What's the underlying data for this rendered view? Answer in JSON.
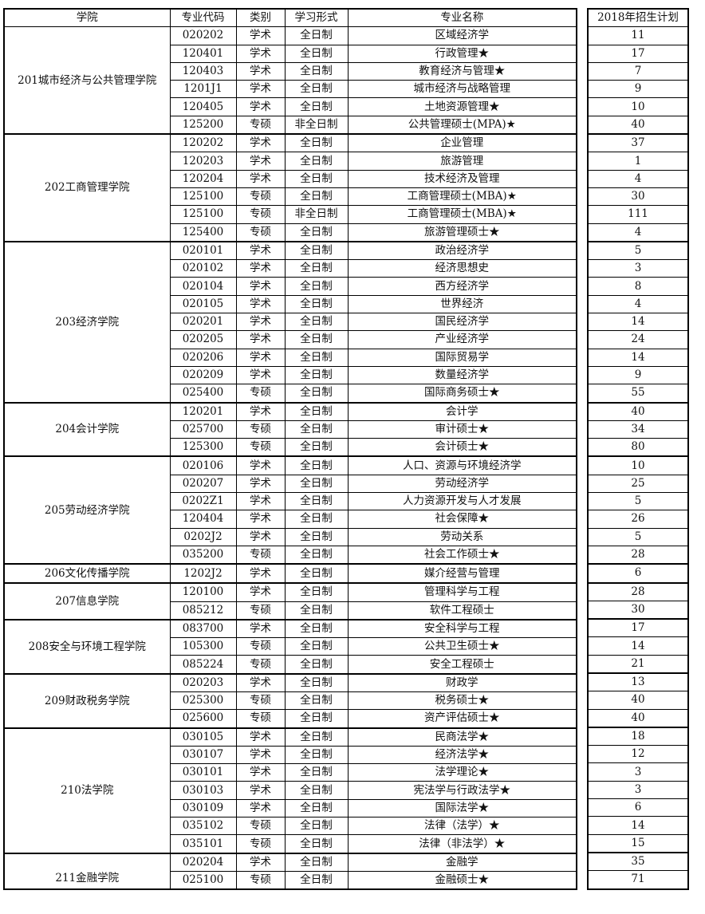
{
  "headers": {
    "college": "学院",
    "code": "专业代码",
    "type": "类别",
    "mode": "学习形式",
    "name": "专业名称",
    "plan": "2018年招生计划"
  },
  "groups": [
    {
      "college": "201城市经济与公共管理学院",
      "rows": [
        {
          "code": "020202",
          "type": "学术",
          "mode": "全日制",
          "name": "区域经济学",
          "plan": "11"
        },
        {
          "code": "120401",
          "type": "学术",
          "mode": "全日制",
          "name": "行政管理★",
          "plan": "17"
        },
        {
          "code": "120403",
          "type": "学术",
          "mode": "全日制",
          "name": "教育经济与管理★",
          "plan": "7"
        },
        {
          "code": "1201J1",
          "type": "学术",
          "mode": "全日制",
          "name": "城市经济与战略管理",
          "plan": "9"
        },
        {
          "code": "120405",
          "type": "学术",
          "mode": "全日制",
          "name": "土地资源管理★",
          "plan": "10"
        },
        {
          "code": "125200",
          "type": "专硕",
          "mode": "非全日制",
          "name": "公共管理硕士(MPA)★",
          "plan": "40"
        }
      ]
    },
    {
      "college": "202工商管理学院",
      "rows": [
        {
          "code": "120202",
          "type": "学术",
          "mode": "全日制",
          "name": "企业管理",
          "plan": "37"
        },
        {
          "code": "120203",
          "type": "学术",
          "mode": "全日制",
          "name": "旅游管理",
          "plan": "1"
        },
        {
          "code": "120204",
          "type": "学术",
          "mode": "全日制",
          "name": "技术经济及管理",
          "plan": "4"
        },
        {
          "code": "125100",
          "type": "专硕",
          "mode": "全日制",
          "name": "工商管理硕士(MBA)★",
          "plan": "30"
        },
        {
          "code": "125100",
          "type": "专硕",
          "mode": "非全日制",
          "name": "工商管理硕士(MBA)★",
          "plan": "111"
        },
        {
          "code": "125400",
          "type": "专硕",
          "mode": "全日制",
          "name": "旅游管理硕士★",
          "plan": "4"
        }
      ]
    },
    {
      "college": "203经济学院",
      "rows": [
        {
          "code": "020101",
          "type": "学术",
          "mode": "全日制",
          "name": "政治经济学",
          "plan": "5"
        },
        {
          "code": "020102",
          "type": "学术",
          "mode": "全日制",
          "name": "经济思想史",
          "plan": "3"
        },
        {
          "code": "020104",
          "type": "学术",
          "mode": "全日制",
          "name": "西方经济学",
          "plan": "8"
        },
        {
          "code": "020105",
          "type": "学术",
          "mode": "全日制",
          "name": "世界经济",
          "plan": "4"
        },
        {
          "code": "020201",
          "type": "学术",
          "mode": "全日制",
          "name": "国民经济学",
          "plan": "14"
        },
        {
          "code": "020205",
          "type": "学术",
          "mode": "全日制",
          "name": "产业经济学",
          "plan": "24"
        },
        {
          "code": "020206",
          "type": "学术",
          "mode": "全日制",
          "name": "国际贸易学",
          "plan": "14"
        },
        {
          "code": "020209",
          "type": "学术",
          "mode": "全日制",
          "name": "数量经济学",
          "plan": "9"
        },
        {
          "code": "025400",
          "type": "专硕",
          "mode": "全日制",
          "name": "国际商务硕士★",
          "plan": "55"
        }
      ]
    },
    {
      "college": "204会计学院",
      "rows": [
        {
          "code": "120201",
          "type": "学术",
          "mode": "全日制",
          "name": "会计学",
          "plan": "40"
        },
        {
          "code": "025700",
          "type": "专硕",
          "mode": "全日制",
          "name": "审计硕士★",
          "plan": "34"
        },
        {
          "code": "125300",
          "type": "专硕",
          "mode": "全日制",
          "name": "会计硕士★",
          "plan": "80"
        }
      ]
    },
    {
      "college": "205劳动经济学院",
      "rows": [
        {
          "code": "020106",
          "type": "学术",
          "mode": "全日制",
          "name": "人口、资源与环境经济学",
          "plan": "10"
        },
        {
          "code": "020207",
          "type": "学术",
          "mode": "全日制",
          "name": "劳动经济学",
          "plan": "25"
        },
        {
          "code": "0202Z1",
          "type": "学术",
          "mode": "全日制",
          "name": "人力资源开发与人才发展",
          "plan": "5"
        },
        {
          "code": "120404",
          "type": "学术",
          "mode": "全日制",
          "name": "社会保障★",
          "plan": "26"
        },
        {
          "code": "0202J2",
          "type": "学术",
          "mode": "全日制",
          "name": "劳动关系",
          "plan": "5"
        },
        {
          "code": "035200",
          "type": "专硕",
          "mode": "全日制",
          "name": "社会工作硕士★",
          "plan": "28"
        }
      ]
    },
    {
      "college": "206文化传播学院",
      "rows": [
        {
          "code": "1202J2",
          "type": "学术",
          "mode": "全日制",
          "name": "媒介经营与管理",
          "plan": "6"
        }
      ]
    },
    {
      "college": "207信息学院",
      "rows": [
        {
          "code": "120100",
          "type": "学术",
          "mode": "全日制",
          "name": "管理科学与工程",
          "plan": "28"
        },
        {
          "code": "085212",
          "type": "专硕",
          "mode": "全日制",
          "name": "软件工程硕士",
          "plan": "30"
        }
      ]
    },
    {
      "college": "208安全与环境工程学院",
      "rows": [
        {
          "code": "083700",
          "type": "学术",
          "mode": "全日制",
          "name": "安全科学与工程",
          "plan": "17"
        },
        {
          "code": "105300",
          "type": "专硕",
          "mode": "全日制",
          "name": "公共卫生硕士★",
          "plan": "14"
        },
        {
          "code": "085224",
          "type": "专硕",
          "mode": "全日制",
          "name": "安全工程硕士",
          "plan": "21"
        }
      ]
    },
    {
      "college": "209财政税务学院",
      "rows": [
        {
          "code": "020203",
          "type": "学术",
          "mode": "全日制",
          "name": "财政学",
          "plan": "13"
        },
        {
          "code": "025300",
          "type": "专硕",
          "mode": "全日制",
          "name": "税务硕士★",
          "plan": "40"
        },
        {
          "code": "025600",
          "type": "专硕",
          "mode": "全日制",
          "name": "资产评估硕士★",
          "plan": "40"
        }
      ]
    },
    {
      "college": "210法学院",
      "rows": [
        {
          "code": "030105",
          "type": "学术",
          "mode": "全日制",
          "name": "民商法学★",
          "plan": "18"
        },
        {
          "code": "030107",
          "type": "学术",
          "mode": "全日制",
          "name": "经济法学★",
          "plan": "12"
        },
        {
          "code": "030101",
          "type": "学术",
          "mode": "全日制",
          "name": "法学理论★",
          "plan": "3"
        },
        {
          "code": "030103",
          "type": "学术",
          "mode": "全日制",
          "name": "宪法学与行政法学★",
          "plan": "3"
        },
        {
          "code": "030109",
          "type": "学术",
          "mode": "全日制",
          "name": "国际法学★",
          "plan": "6"
        },
        {
          "code": "035102",
          "type": "专硕",
          "mode": "全日制",
          "name": "法律（法学）★",
          "plan": "14"
        },
        {
          "code": "035101",
          "type": "专硕",
          "mode": "全日制",
          "name": "法律（非法学）★",
          "plan": "15"
        }
      ]
    },
    {
      "college": "211金融学院",
      "rows": [
        {
          "code": "020204",
          "type": "学术",
          "mode": "全日制",
          "name": "金融学",
          "plan": "35"
        },
        {
          "code": "025100",
          "type": "专硕",
          "mode": "全日制",
          "name": "金融硕士★",
          "plan": "71"
        }
      ]
    }
  ]
}
